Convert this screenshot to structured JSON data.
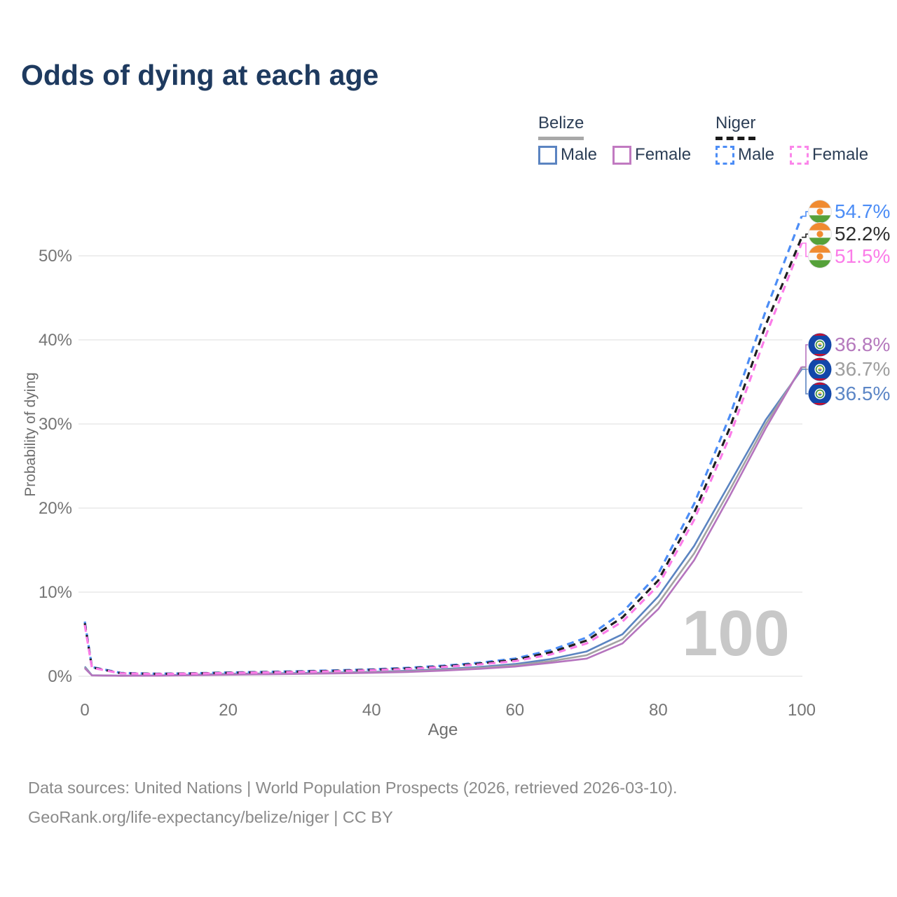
{
  "page": {
    "title": "Odds of dying at each age",
    "watermark_age": "100",
    "footer_line1": "Data sources: United Nations | World Population Prospects (2026, retrieved 2026-03-10).",
    "footer_line2": "GeoRank.org/life-expectancy/belize/niger | CC BY"
  },
  "legend": {
    "groups": [
      {
        "country": "Belize",
        "line_style": "solid",
        "underline_color": "#a8a8a8",
        "items": [
          {
            "label": "Male",
            "color": "#5b84c1"
          },
          {
            "label": "Female",
            "color": "#c17ac1"
          }
        ]
      },
      {
        "country": "Niger",
        "line_style": "dashed",
        "underline_color": "#1a1a1a",
        "items": [
          {
            "label": "Male",
            "color": "#4c8df6"
          },
          {
            "label": "Female",
            "color": "#fb86ea"
          }
        ]
      }
    ]
  },
  "chart_data": {
    "type": "line",
    "title": "Odds of dying at each age",
    "xlabel": "Age",
    "ylabel": "Probability of dying",
    "unit": "percent",
    "grid": "horizontal",
    "legend_position": "top-right",
    "xlim": [
      0,
      100
    ],
    "ylim": [
      0,
      57
    ],
    "x_ticks": [
      0,
      20,
      40,
      60,
      80,
      100
    ],
    "y_ticks": [
      {
        "value": 0,
        "label": "0%"
      },
      {
        "value": 10,
        "label": "10%"
      },
      {
        "value": 20,
        "label": "20%"
      },
      {
        "value": 30,
        "label": "30%"
      },
      {
        "value": 40,
        "label": "40%"
      },
      {
        "value": 50,
        "label": "50%"
      }
    ],
    "x": [
      0,
      1,
      5,
      10,
      15,
      20,
      25,
      30,
      35,
      40,
      45,
      50,
      55,
      60,
      65,
      70,
      75,
      80,
      85,
      90,
      95,
      100
    ],
    "series": [
      {
        "id": "niger-male",
        "country": "Niger",
        "sex": "Male",
        "style": "dashed",
        "color": "#4c8df6",
        "label_color": "#4c8df6",
        "end_label": "54.7%",
        "flag": "niger",
        "values": [
          6.5,
          1.1,
          0.4,
          0.3,
          0.35,
          0.45,
          0.52,
          0.6,
          0.7,
          0.82,
          1.0,
          1.25,
          1.6,
          2.1,
          3.1,
          4.6,
          7.6,
          12.2,
          20.5,
          31.0,
          43.5,
          54.7
        ]
      },
      {
        "id": "niger-total",
        "country": "Niger",
        "sex": "Both",
        "style": "dashed",
        "color": "#1f1f1f",
        "label_color": "#2e2e2e",
        "end_label": "52.2%",
        "flag": "niger",
        "values": [
          6.3,
          1.05,
          0.37,
          0.28,
          0.33,
          0.42,
          0.48,
          0.56,
          0.65,
          0.77,
          0.93,
          1.17,
          1.5,
          1.95,
          2.85,
          4.25,
          7.0,
          11.4,
          19.4,
          29.6,
          41.8,
          52.2
        ]
      },
      {
        "id": "niger-female",
        "country": "Niger",
        "sex": "Female",
        "style": "dashed",
        "color": "#fb7ce8",
        "label_color": "#fb7ce8",
        "end_label": "51.5%",
        "flag": "niger",
        "values": [
          6.1,
          1.0,
          0.35,
          0.26,
          0.31,
          0.39,
          0.45,
          0.52,
          0.6,
          0.72,
          0.87,
          1.1,
          1.4,
          1.8,
          2.6,
          3.9,
          6.5,
          10.8,
          18.6,
          28.6,
          40.5,
          51.5
        ]
      },
      {
        "id": "belize-male",
        "country": "Belize",
        "sex": "Male",
        "style": "solid",
        "color": "#5b84c1",
        "label_color": "#5c86c6",
        "end_label": "36.5%",
        "flag": "belize",
        "values": [
          1.15,
          0.12,
          0.07,
          0.09,
          0.18,
          0.28,
          0.33,
          0.38,
          0.44,
          0.52,
          0.65,
          0.85,
          1.1,
          1.45,
          2.05,
          2.95,
          5.0,
          9.5,
          15.5,
          23.0,
          30.5,
          36.5
        ]
      },
      {
        "id": "belize-total",
        "country": "Belize",
        "sex": "Both",
        "style": "solid",
        "color": "#a3a3a3",
        "label_color": "#9e9e9e",
        "end_label": "36.7%",
        "flag": "belize",
        "values": [
          1.05,
          0.11,
          0.06,
          0.08,
          0.15,
          0.23,
          0.28,
          0.33,
          0.39,
          0.47,
          0.58,
          0.76,
          1.0,
          1.3,
          1.8,
          2.5,
          4.4,
          8.7,
          14.6,
          22.2,
          30.0,
          36.7
        ]
      },
      {
        "id": "belize-female",
        "country": "Belize",
        "sex": "Female",
        "style": "solid",
        "color": "#b574be",
        "label_color": "#b579bd",
        "end_label": "36.8%",
        "flag": "belize",
        "values": [
          0.95,
          0.1,
          0.06,
          0.07,
          0.12,
          0.18,
          0.23,
          0.28,
          0.33,
          0.41,
          0.51,
          0.67,
          0.88,
          1.15,
          1.6,
          2.1,
          3.9,
          8.0,
          13.8,
          21.5,
          29.5,
          36.8
        ]
      }
    ]
  }
}
